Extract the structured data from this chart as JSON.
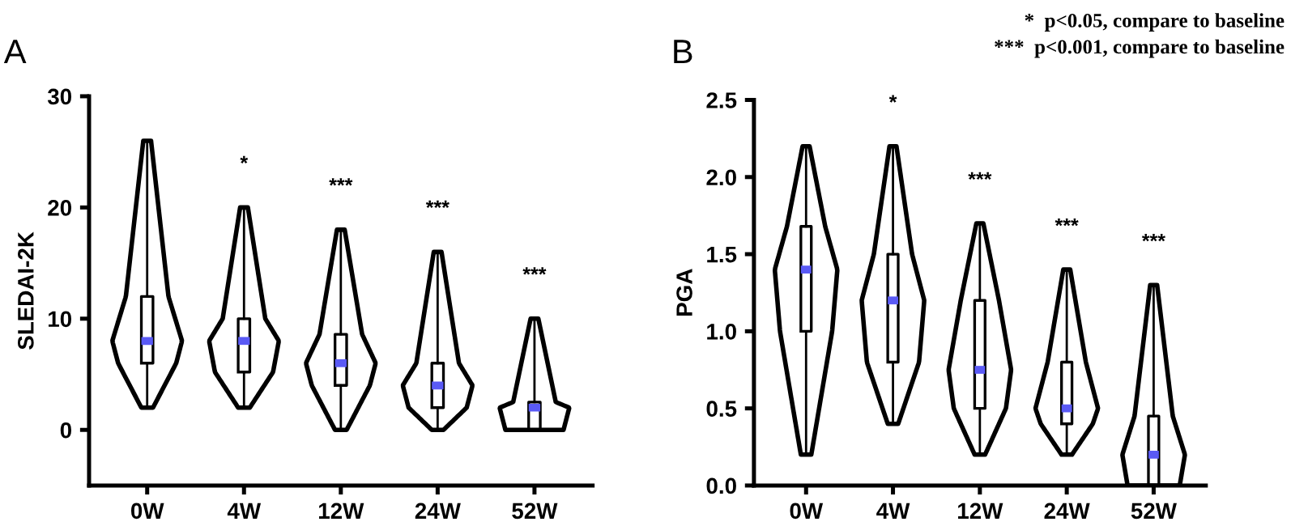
{
  "chart_data": [
    {
      "type": "box",
      "ylabel": "SLEDAI-2K",
      "categories": [
        "0W",
        "4W",
        "12W",
        "24W",
        "52W"
      ],
      "ylim": [
        -5,
        30
      ],
      "yticks": [
        0,
        10,
        20,
        30
      ],
      "color": "#000000",
      "grid": false,
      "legend": false,
      "boxes": [
        {
          "low": 2,
          "q1": 6,
          "median": 8,
          "q3": 12,
          "high": 26
        },
        {
          "low": 2,
          "q1": 5.2,
          "median": 8,
          "q3": 10,
          "high": 20
        },
        {
          "low": 0,
          "q1": 4,
          "median": 6,
          "q3": 8.6,
          "high": 18
        },
        {
          "low": 0,
          "q1": 2,
          "median": 4,
          "q3": 6,
          "high": 16
        },
        {
          "low": 0,
          "q1": 0,
          "median": 2,
          "q3": 2.5,
          "high": 10
        }
      ],
      "annotations": [
        "A",
        "*",
        "***",
        "***",
        "***"
      ]
    },
    {
      "type": "box",
      "ylabel": "PGA",
      "categories": [
        "0W",
        "4W",
        "12W",
        "24W",
        "52W"
      ],
      "ylim": [
        0,
        2.5
      ],
      "yticks": [
        {
          "value": 0,
          "label": "0.0"
        },
        0.5,
        {
          "value": 1,
          "label": "1.0"
        },
        1.5,
        {
          "value": 2,
          "label": "2.0"
        },
        2.5
      ],
      "color": "#000000",
      "grid": false,
      "legend": false,
      "boxes": [
        {
          "low": 0.2,
          "q1": 1.0,
          "median": 1.4,
          "q3": 1.68,
          "high": 2.2
        },
        {
          "low": 0.4,
          "q1": 0.8,
          "median": 1.2,
          "q3": 1.5,
          "high": 2.2
        },
        {
          "low": 0.2,
          "q1": 0.5,
          "median": 0.75,
          "q3": 1.2,
          "high": 1.7
        },
        {
          "low": 0.2,
          "q1": 0.4,
          "median": 0.5,
          "q3": 0.8,
          "high": 1.4
        },
        {
          "low": 0,
          "q1": 0,
          "median": 0.2,
          "q3": 0.45,
          "high": 1.3
        }
      ],
      "annotations": [
        "B",
        "*",
        "***",
        "***",
        "***",
        "*  p<0.05, compare to baseline",
        "***  p<0.001, compare to baseline"
      ]
    }
  ]
}
